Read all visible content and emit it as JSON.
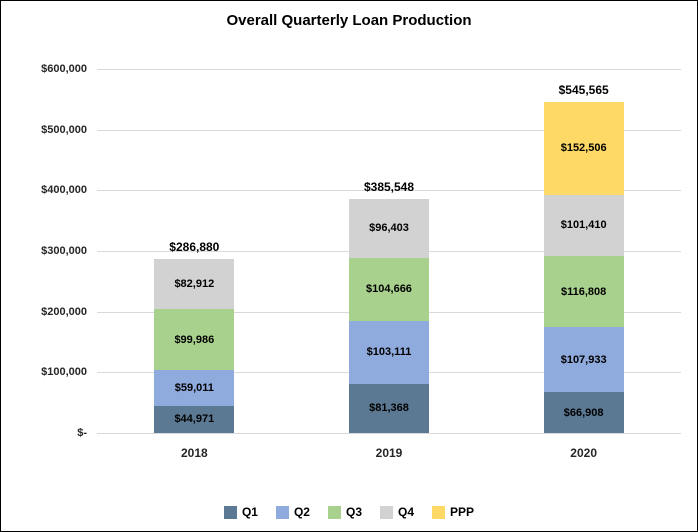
{
  "chart_data": {
    "type": "bar",
    "stacked": true,
    "title": "Overall Quarterly Loan Production",
    "categories": [
      "2018",
      "2019",
      "2020"
    ],
    "series": [
      {
        "name": "Q1",
        "color": "#5b7993",
        "values": [
          44971,
          81368,
          66908
        ]
      },
      {
        "name": "Q2",
        "color": "#8faadc",
        "values": [
          59011,
          103111,
          107933
        ]
      },
      {
        "name": "Q3",
        "color": "#a9d18e",
        "values": [
          99986,
          104666,
          116808
        ]
      },
      {
        "name": "Q4",
        "color": "#d2d2d2",
        "values": [
          82912,
          96403,
          101410
        ]
      },
      {
        "name": "PPP",
        "color": "#ffd966",
        "values": [
          0,
          0,
          152506
        ]
      }
    ],
    "totals": [
      286880,
      385548,
      545565
    ],
    "ylim": [
      0,
      600000
    ],
    "ytick_interval": 100000,
    "ytick_labels": [
      "$-",
      "$100,000",
      "$200,000",
      "$300,000",
      "$400,000",
      "$500,000",
      "$600,000"
    ],
    "grid": true,
    "legend_position": "bottom",
    "gridline_color": "#d9d9d9"
  }
}
